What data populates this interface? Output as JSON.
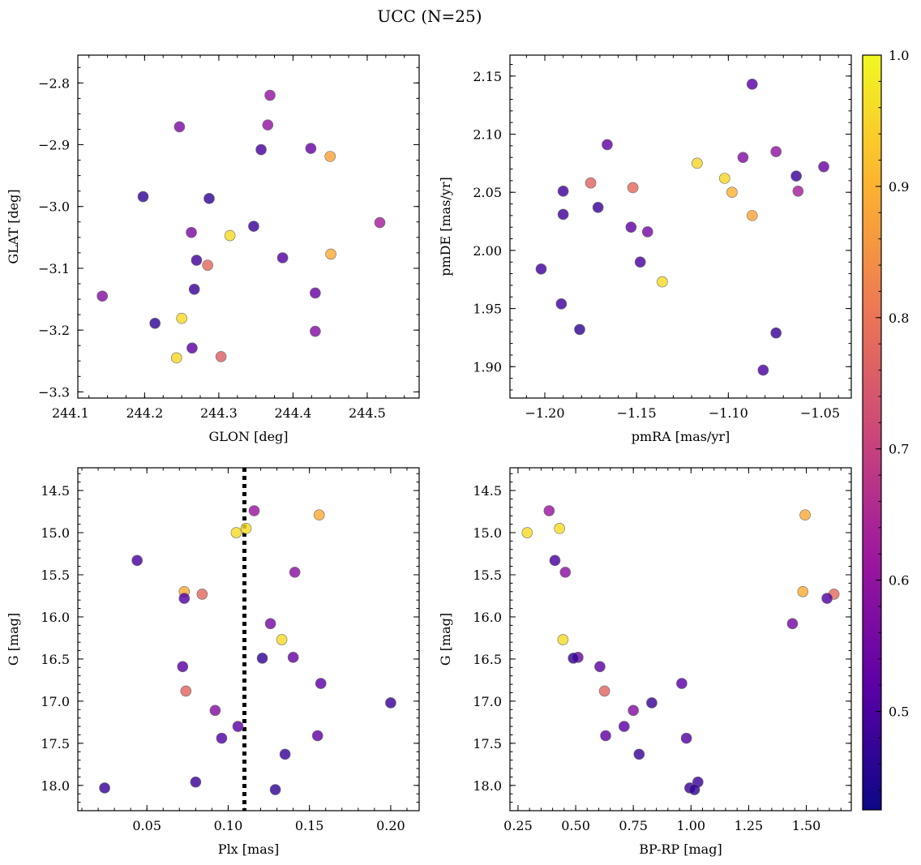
{
  "figure": {
    "title": "UCC (N=25)"
  },
  "colorbar": {
    "min": 0.425,
    "max": 1.0,
    "ticks": [
      0.5,
      0.6,
      0.7,
      0.8,
      0.9,
      1.0
    ],
    "tick_labels": [
      "0.5",
      "0.6",
      "0.7",
      "0.8",
      "0.9",
      "1.0"
    ],
    "colormap": "plasma",
    "stops": [
      "#0d0887",
      "#5c01a6",
      "#9c179e",
      "#cc4778",
      "#ed7953",
      "#fdb42f",
      "#f0f921"
    ]
  },
  "chart_data": [
    {
      "type": "scatter",
      "name": "glon-glat",
      "xlabel": "GLON [deg]",
      "ylabel": "GLAT [deg]",
      "xlim": [
        244.11,
        244.57
      ],
      "ylim": [
        -3.31,
        -2.755
      ],
      "y_inverted": false,
      "xticks": [
        244.1,
        244.2,
        244.3,
        244.4,
        244.5
      ],
      "xtick_labels": [
        "244.1",
        "244.2",
        "244.3",
        "244.4",
        "244.5"
      ],
      "yticks": [
        -2.8,
        -2.9,
        -3.0,
        -3.1,
        -3.2,
        -3.3
      ],
      "ytick_labels": [
        "−2.8",
        "−2.9",
        "−3.0",
        "−3.1",
        "−3.2",
        "−3.3"
      ],
      "xminor": 0.025,
      "yminor": 0.025,
      "points": [
        {
          "x": 244.369,
          "y": -2.82,
          "c": 0.6
        },
        {
          "x": 244.247,
          "y": -2.871,
          "c": 0.57
        },
        {
          "x": 244.366,
          "y": -2.868,
          "c": 0.6
        },
        {
          "x": 244.357,
          "y": -2.908,
          "c": 0.5
        },
        {
          "x": 244.424,
          "y": -2.906,
          "c": 0.54
        },
        {
          "x": 244.45,
          "y": -2.919,
          "c": 0.88
        },
        {
          "x": 244.198,
          "y": -2.984,
          "c": 0.47
        },
        {
          "x": 244.287,
          "y": -2.987,
          "c": 0.47
        },
        {
          "x": 244.517,
          "y": -3.026,
          "c": 0.63
        },
        {
          "x": 244.347,
          "y": -3.032,
          "c": 0.48
        },
        {
          "x": 244.263,
          "y": -3.042,
          "c": 0.57
        },
        {
          "x": 244.315,
          "y": -3.047,
          "c": 0.96
        },
        {
          "x": 244.451,
          "y": -3.077,
          "c": 0.89
        },
        {
          "x": 244.386,
          "y": -3.083,
          "c": 0.51
        },
        {
          "x": 244.27,
          "y": -3.087,
          "c": 0.49
        },
        {
          "x": 244.285,
          "y": -3.095,
          "c": 0.78
        },
        {
          "x": 244.267,
          "y": -3.134,
          "c": 0.48
        },
        {
          "x": 244.43,
          "y": -3.14,
          "c": 0.54
        },
        {
          "x": 244.143,
          "y": -3.145,
          "c": 0.58
        },
        {
          "x": 244.25,
          "y": -3.181,
          "c": 0.96
        },
        {
          "x": 244.214,
          "y": -3.189,
          "c": 0.47
        },
        {
          "x": 244.43,
          "y": -3.202,
          "c": 0.58
        },
        {
          "x": 244.264,
          "y": -3.229,
          "c": 0.52
        },
        {
          "x": 244.303,
          "y": -3.243,
          "c": 0.76
        },
        {
          "x": 244.243,
          "y": -3.245,
          "c": 0.95
        }
      ]
    },
    {
      "type": "scatter",
      "name": "pmra-pmde",
      "xlabel": "pmRA [mas/yr]",
      "ylabel": "pmDE [mas/yr]",
      "xlim": [
        -1.219,
        -1.033
      ],
      "ylim": [
        1.873,
        2.168
      ],
      "y_inverted": false,
      "xticks": [
        -1.2,
        -1.15,
        -1.1,
        -1.05
      ],
      "xtick_labels": [
        "−1.20",
        "−1.15",
        "−1.10",
        "−1.05"
      ],
      "yticks": [
        1.9,
        1.95,
        2.0,
        2.05,
        2.1,
        2.15
      ],
      "ytick_labels": [
        "1.90",
        "1.95",
        "2.00",
        "2.05",
        "2.10",
        "2.15"
      ],
      "xminor": 0.01,
      "yminor": 0.01,
      "points": [
        {
          "x": -1.087,
          "y": 2.143,
          "c": 0.52
        },
        {
          "x": -1.166,
          "y": 2.091,
          "c": 0.53
        },
        {
          "x": -1.074,
          "y": 2.085,
          "c": 0.6
        },
        {
          "x": -1.092,
          "y": 2.08,
          "c": 0.58
        },
        {
          "x": -1.117,
          "y": 2.075,
          "c": 0.95
        },
        {
          "x": -1.048,
          "y": 2.072,
          "c": 0.54
        },
        {
          "x": -1.063,
          "y": 2.064,
          "c": 0.48
        },
        {
          "x": -1.102,
          "y": 2.062,
          "c": 0.95
        },
        {
          "x": -1.175,
          "y": 2.058,
          "c": 0.77
        },
        {
          "x": -1.152,
          "y": 2.054,
          "c": 0.78
        },
        {
          "x": -1.19,
          "y": 2.051,
          "c": 0.49
        },
        {
          "x": -1.062,
          "y": 2.051,
          "c": 0.63
        },
        {
          "x": -1.098,
          "y": 2.05,
          "c": 0.9
        },
        {
          "x": -1.171,
          "y": 2.037,
          "c": 0.48
        },
        {
          "x": -1.19,
          "y": 2.031,
          "c": 0.49
        },
        {
          "x": -1.087,
          "y": 2.03,
          "c": 0.88
        },
        {
          "x": -1.153,
          "y": 2.02,
          "c": 0.53
        },
        {
          "x": -1.144,
          "y": 2.016,
          "c": 0.56
        },
        {
          "x": -1.148,
          "y": 1.99,
          "c": 0.5
        },
        {
          "x": -1.202,
          "y": 1.984,
          "c": 0.49
        },
        {
          "x": -1.136,
          "y": 1.973,
          "c": 0.96
        },
        {
          "x": -1.191,
          "y": 1.954,
          "c": 0.49
        },
        {
          "x": -1.181,
          "y": 1.932,
          "c": 0.47
        },
        {
          "x": -1.074,
          "y": 1.929,
          "c": 0.48
        },
        {
          "x": -1.081,
          "y": 1.897,
          "c": 0.5
        }
      ]
    },
    {
      "type": "scatter",
      "name": "plx-g",
      "xlabel": "Plx [mas]",
      "ylabel": "G [mag]",
      "xlim": [
        0.0075,
        0.2175
      ],
      "ylim": [
        18.3,
        14.23
      ],
      "y_inverted": true,
      "xticks": [
        0.05,
        0.1,
        0.15,
        0.2
      ],
      "xtick_labels": [
        "0.05",
        "0.10",
        "0.15",
        "0.20"
      ],
      "yticks": [
        14.5,
        15.0,
        15.5,
        16.0,
        16.5,
        17.0,
        17.5,
        18.0
      ],
      "ytick_labels": [
        "14.5",
        "15.0",
        "15.5",
        "16.0",
        "16.5",
        "17.0",
        "17.5",
        "18.0"
      ],
      "xminor": 0.01,
      "yminor": 0.1,
      "vline": 0.11,
      "points": [
        {
          "x": 0.116,
          "y": 14.74,
          "c": 0.61
        },
        {
          "x": 0.156,
          "y": 14.79,
          "c": 0.89
        },
        {
          "x": 0.111,
          "y": 14.95,
          "c": 0.96
        },
        {
          "x": 0.105,
          "y": 15.0,
          "c": 0.96
        },
        {
          "x": 0.044,
          "y": 15.33,
          "c": 0.5
        },
        {
          "x": 0.141,
          "y": 15.47,
          "c": 0.59
        },
        {
          "x": 0.073,
          "y": 15.7,
          "c": 0.89
        },
        {
          "x": 0.084,
          "y": 15.73,
          "c": 0.78
        },
        {
          "x": 0.073,
          "y": 15.78,
          "c": 0.51
        },
        {
          "x": 0.126,
          "y": 16.08,
          "c": 0.56
        },
        {
          "x": 0.133,
          "y": 16.27,
          "c": 0.96
        },
        {
          "x": 0.14,
          "y": 16.48,
          "c": 0.54
        },
        {
          "x": 0.121,
          "y": 16.49,
          "c": 0.47
        },
        {
          "x": 0.072,
          "y": 16.59,
          "c": 0.52
        },
        {
          "x": 0.157,
          "y": 16.79,
          "c": 0.52
        },
        {
          "x": 0.074,
          "y": 16.88,
          "c": 0.77
        },
        {
          "x": 0.2,
          "y": 17.02,
          "c": 0.48
        },
        {
          "x": 0.092,
          "y": 17.11,
          "c": 0.58
        },
        {
          "x": 0.106,
          "y": 17.3,
          "c": 0.52
        },
        {
          "x": 0.155,
          "y": 17.41,
          "c": 0.53
        },
        {
          "x": 0.096,
          "y": 17.44,
          "c": 0.51
        },
        {
          "x": 0.135,
          "y": 17.63,
          "c": 0.48
        },
        {
          "x": 0.08,
          "y": 17.96,
          "c": 0.48
        },
        {
          "x": 0.024,
          "y": 18.03,
          "c": 0.48
        },
        {
          "x": 0.129,
          "y": 18.05,
          "c": 0.47
        }
      ]
    },
    {
      "type": "scatter",
      "name": "bprp-g",
      "xlabel": "BP-RP [mag]",
      "ylabel": "G [mag]",
      "xlim": [
        0.215,
        1.695
      ],
      "ylim": [
        18.3,
        14.23
      ],
      "y_inverted": true,
      "xticks": [
        0.25,
        0.5,
        0.75,
        1.0,
        1.25,
        1.5
      ],
      "xtick_labels": [
        "0.25",
        "0.50",
        "0.75",
        "1.00",
        "1.25",
        "1.50"
      ],
      "yticks": [
        14.5,
        15.0,
        15.5,
        16.0,
        16.5,
        17.0,
        17.5,
        18.0
      ],
      "ytick_labels": [
        "14.5",
        "15.0",
        "15.5",
        "16.0",
        "16.5",
        "17.0",
        "17.5",
        "18.0"
      ],
      "xminor": 0.05,
      "yminor": 0.1,
      "points": [
        {
          "x": 0.385,
          "y": 14.74,
          "c": 0.61
        },
        {
          "x": 1.495,
          "y": 14.79,
          "c": 0.89
        },
        {
          "x": 0.43,
          "y": 14.95,
          "c": 0.96
        },
        {
          "x": 0.29,
          "y": 15.0,
          "c": 0.96
        },
        {
          "x": 0.41,
          "y": 15.33,
          "c": 0.5
        },
        {
          "x": 0.455,
          "y": 15.47,
          "c": 0.59
        },
        {
          "x": 1.485,
          "y": 15.7,
          "c": 0.89
        },
        {
          "x": 1.62,
          "y": 15.73,
          "c": 0.78
        },
        {
          "x": 1.59,
          "y": 15.78,
          "c": 0.51
        },
        {
          "x": 1.44,
          "y": 16.08,
          "c": 0.56
        },
        {
          "x": 0.445,
          "y": 16.27,
          "c": 0.96
        },
        {
          "x": 0.51,
          "y": 16.48,
          "c": 0.54
        },
        {
          "x": 0.49,
          "y": 16.49,
          "c": 0.47
        },
        {
          "x": 0.605,
          "y": 16.59,
          "c": 0.52
        },
        {
          "x": 0.96,
          "y": 16.79,
          "c": 0.52
        },
        {
          "x": 0.625,
          "y": 16.88,
          "c": 0.77
        },
        {
          "x": 0.83,
          "y": 17.02,
          "c": 0.48
        },
        {
          "x": 0.75,
          "y": 17.11,
          "c": 0.58
        },
        {
          "x": 0.71,
          "y": 17.3,
          "c": 0.52
        },
        {
          "x": 0.63,
          "y": 17.41,
          "c": 0.53
        },
        {
          "x": 0.98,
          "y": 17.44,
          "c": 0.51
        },
        {
          "x": 0.775,
          "y": 17.63,
          "c": 0.48
        },
        {
          "x": 1.03,
          "y": 17.96,
          "c": 0.48
        },
        {
          "x": 0.995,
          "y": 18.03,
          "c": 0.48
        },
        {
          "x": 1.015,
          "y": 18.05,
          "c": 0.47
        }
      ]
    }
  ]
}
